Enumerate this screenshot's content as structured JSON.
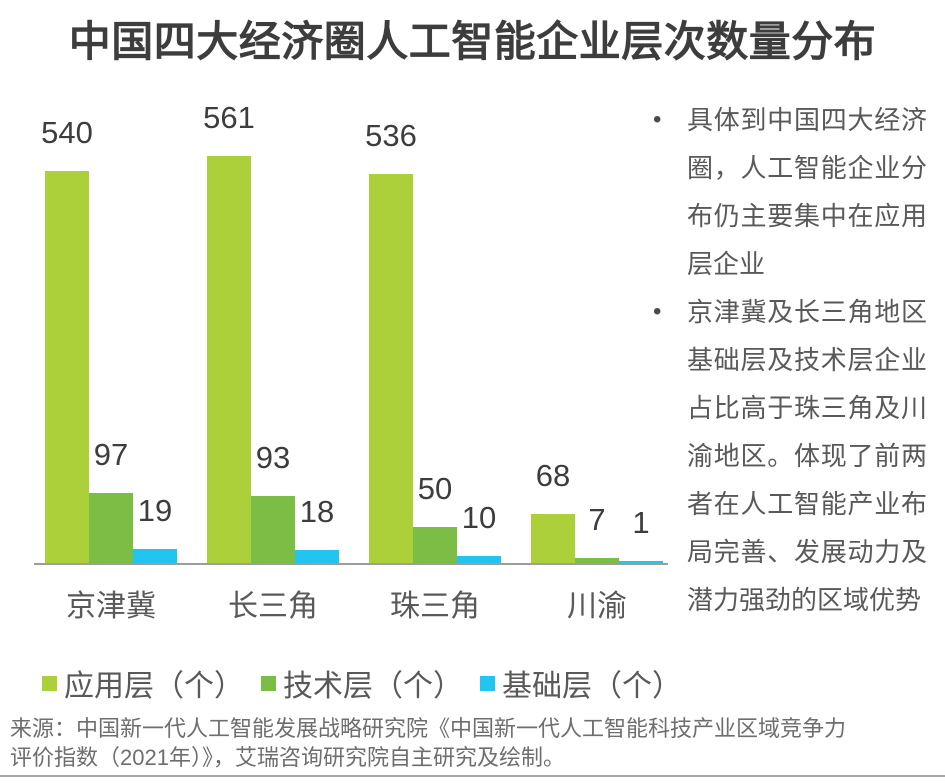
{
  "title": "中国四大经济圈人工智能企业层次数量分布",
  "chart_data": {
    "type": "bar",
    "title": "中国四大经济圈人工智能企业层次数量分布",
    "categories": [
      "京津冀",
      "长三角",
      "珠三角",
      "川渝"
    ],
    "series": [
      {
        "key": "app-layer",
        "name": "应用层（个）",
        "color": "#abd039",
        "values": [
          540,
          561,
          536,
          68
        ]
      },
      {
        "key": "tech-layer",
        "name": "技术层（个）",
        "color": "#7cbe45",
        "values": [
          97,
          93,
          50,
          7
        ]
      },
      {
        "key": "base-layer",
        "name": "基础层（个）",
        "color": "#21c5f0",
        "values": [
          19,
          18,
          10,
          1
        ]
      }
    ],
    "value_labels": "outside-end",
    "legend_position": "bottom-left",
    "y_axis": {
      "visible": false,
      "min": 0,
      "max": 561
    },
    "gridlines": false
  },
  "notes": {
    "items": [
      "具体到中国四大经济圈，人工智能企业分布仍主要集中在应用层企业",
      "京津冀及长三角地区基础层及技术层企业占比高于珠三角及川渝地区。体现了前两者在人工智能产业布局完善、发展动力及潜力强劲的区域优势"
    ]
  },
  "source": "来源：中国新一代人工智能发展战略研究院《中国新一代人工智能科技产业区域竞争力评价指数（2021年）》，艾瑞咨询研究院自主研究及绘制。",
  "colors": {
    "app_layer": "#abd039",
    "tech_layer": "#7cbe45",
    "base_layer": "#21c5f0",
    "axis_line": "#9d9d9d",
    "title_text": "#3d3d3d",
    "label_text": "#595959",
    "source_text": "#6e6e6e"
  }
}
